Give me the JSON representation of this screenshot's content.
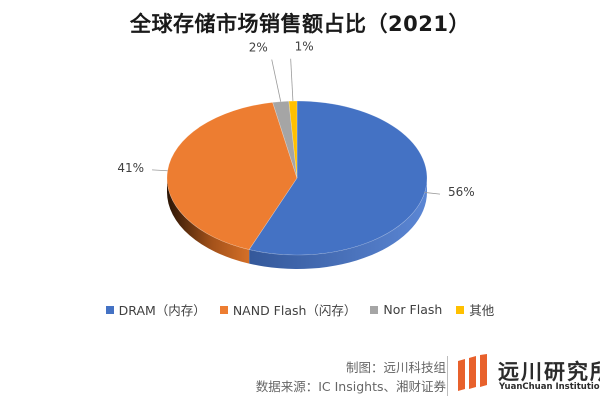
{
  "chart_data": {
    "type": "pie",
    "style": "3d-pie",
    "title": "全球存储市场销售额占比（2021）",
    "categories": [
      "DRAM（内存）",
      "NAND Flash（闪存）",
      "Nor Flash",
      "其他"
    ],
    "values": [
      56,
      41,
      2,
      1
    ],
    "data_labels": [
      "56%",
      "41%",
      "2%",
      "1%"
    ],
    "colors": [
      "#4472C4",
      "#ED7D31",
      "#A5A5A5",
      "#FFC000"
    ],
    "legend_position": "bottom"
  },
  "footer": {
    "maker": "制图：远川科技组",
    "source": "数据来源：IC Insights、湘财证券"
  },
  "logo": {
    "name_cn": "远川研究所",
    "name_en": "YuanChuan Institution"
  }
}
